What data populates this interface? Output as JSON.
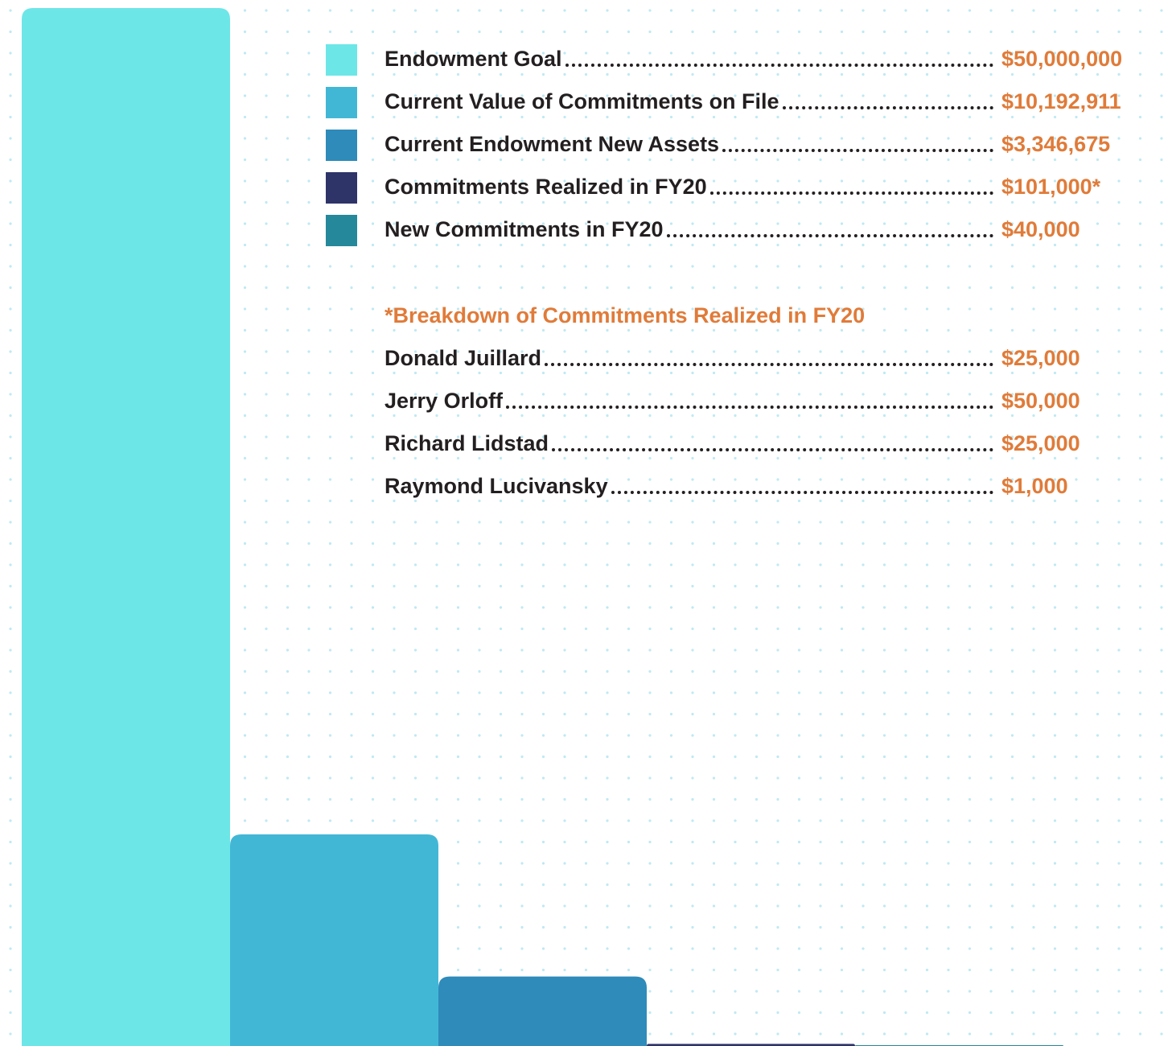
{
  "chart_data": {
    "type": "bar",
    "categories": [
      "Endowment Goal",
      "Current Value of Commitments on File",
      "Current Endowment New Assets",
      "Commitments Realized in FY20",
      "New Commitments in FY20"
    ],
    "values": [
      50000000,
      10192911,
      3346675,
      101000,
      40000
    ],
    "value_labels": [
      "$50,000,000",
      "$10,192,911",
      "$3,346,675",
      "$101,000*",
      "$40,000"
    ],
    "colors": [
      "#6de6e8",
      "#42b7d5",
      "#2e8bba",
      "#2e3468",
      "#26889b"
    ],
    "breakdown": {
      "title": "*Breakdown of Commitments Realized in FY20",
      "names": [
        "Donald Juillard",
        "Jerry Orloff",
        "Richard Lidstad",
        "Raymond Lucivansky"
      ],
      "amounts": [
        "$25,000",
        "$50,000",
        "$25,000",
        "$1,000"
      ]
    }
  }
}
